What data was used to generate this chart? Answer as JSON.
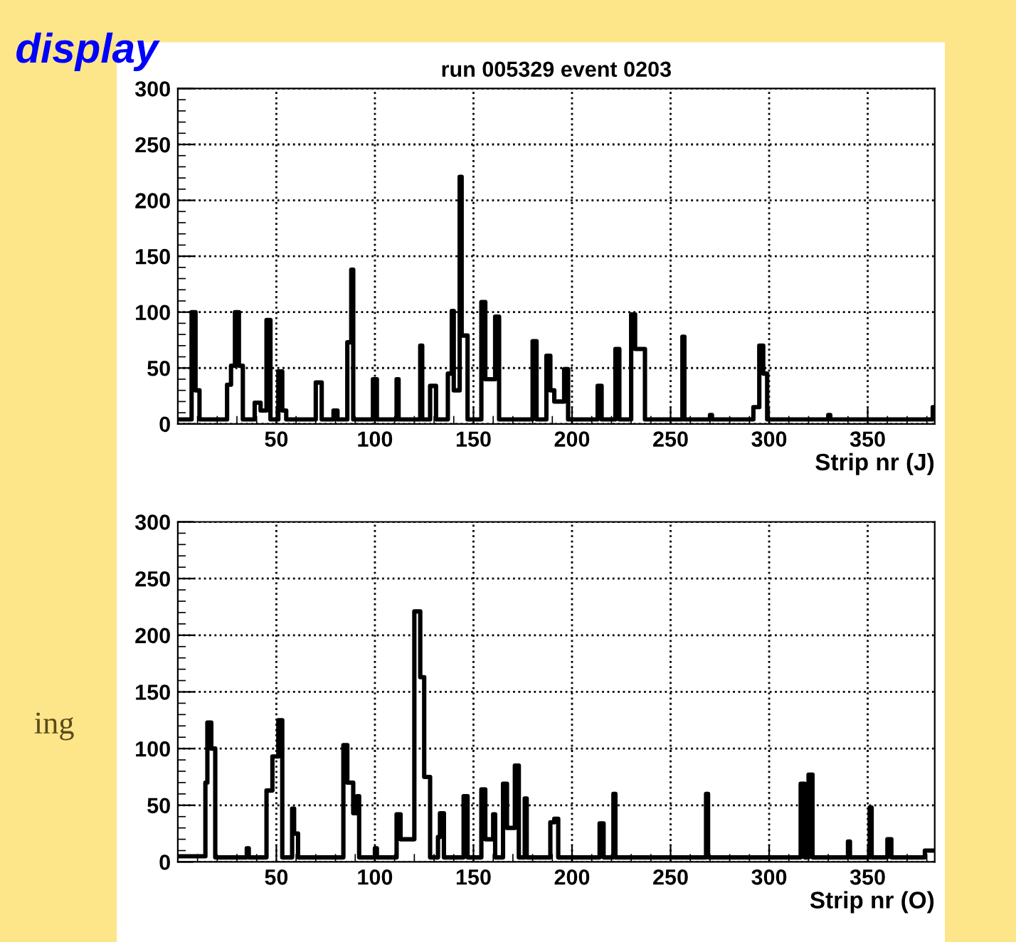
{
  "chart_data": [
    {
      "type": "step",
      "title": "run 005329 event 0203",
      "xlabel": "Strip nr (J)",
      "annotations": [
        "display"
      ],
      "xlim": [
        0,
        384
      ],
      "ylim": [
        0,
        300
      ],
      "xticks": [
        50,
        100,
        150,
        200,
        250,
        300,
        350
      ],
      "yticks": [
        0,
        50,
        100,
        150,
        200,
        250,
        300
      ],
      "grid": true,
      "legend": false,
      "series": [
        {
          "color": "#000000",
          "x": [
            0,
            7,
            9,
            11,
            25,
            27,
            29,
            31,
            33,
            39,
            42,
            45,
            47,
            51,
            53,
            55,
            70,
            73,
            79,
            81,
            86,
            88,
            89,
            99,
            101,
            111,
            112,
            123,
            124,
            128,
            131,
            137,
            139,
            140,
            143,
            144,
            147,
            154,
            156,
            161,
            163,
            180,
            182,
            187,
            189,
            191,
            196,
            198,
            213,
            215,
            222,
            224,
            230,
            232,
            235,
            237,
            256,
            257,
            270,
            271,
            292,
            295,
            297,
            299,
            330,
            331,
            383,
            384
          ],
          "values": [
            4,
            100,
            30,
            4,
            35,
            52,
            100,
            52,
            4,
            19,
            12,
            93,
            4,
            47,
            12,
            4,
            37,
            4,
            12,
            4,
            73,
            138,
            4,
            40,
            4,
            40,
            4,
            70,
            4,
            34,
            4,
            45,
            101,
            30,
            221,
            79,
            4,
            109,
            40,
            96,
            4,
            74,
            4,
            61,
            30,
            20,
            49,
            4,
            34,
            4,
            67,
            4,
            98,
            67,
            67,
            4,
            78,
            4,
            8,
            4,
            15,
            70,
            45,
            4,
            8,
            4,
            15,
            15
          ]
        }
      ]
    },
    {
      "type": "step",
      "xlabel": "Strip nr (O)",
      "annotations": [
        "ing"
      ],
      "xlim": [
        0,
        384
      ],
      "ylim": [
        0,
        300
      ],
      "xticks": [
        50,
        100,
        150,
        200,
        250,
        300,
        350
      ],
      "yticks": [
        0,
        50,
        100,
        150,
        200,
        250,
        300
      ],
      "grid": true,
      "legend": false,
      "series": [
        {
          "color": "#000000",
          "x": [
            0,
            14,
            15,
            17,
            19,
            35,
            36,
            45,
            48,
            51,
            53,
            58,
            59,
            61,
            84,
            86,
            89,
            91,
            92,
            100,
            101,
            111,
            113,
            120,
            123,
            125,
            128,
            132,
            133,
            135,
            145,
            147,
            154,
            156,
            160,
            161,
            165,
            167,
            171,
            173,
            176,
            177,
            189,
            191,
            193,
            214,
            216,
            221,
            222,
            268,
            269,
            316,
            318,
            320,
            322,
            340,
            341,
            351,
            352,
            360,
            362,
            379,
            384
          ],
          "values": [
            5,
            70,
            123,
            100,
            4,
            12,
            4,
            63,
            93,
            125,
            4,
            47,
            25,
            4,
            103,
            70,
            43,
            58,
            4,
            12,
            4,
            42,
            20,
            221,
            163,
            75,
            4,
            22,
            43,
            4,
            58,
            4,
            64,
            20,
            42,
            4,
            69,
            30,
            85,
            4,
            56,
            4,
            35,
            38,
            4,
            34,
            4,
            60,
            4,
            60,
            4,
            69,
            4,
            77,
            4,
            18,
            4,
            48,
            4,
            20,
            4,
            10,
            10
          ]
        }
      ]
    }
  ]
}
